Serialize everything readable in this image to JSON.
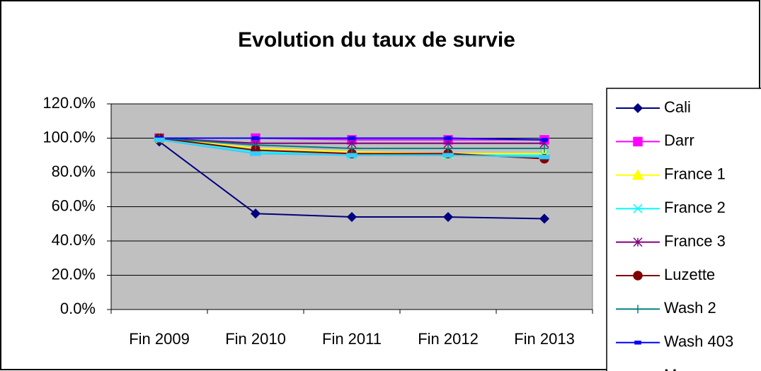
{
  "chart_data": {
    "type": "line",
    "title": "Evolution du taux de survie",
    "categories": [
      "Fin 2009",
      "Fin 2010",
      "Fin 2011",
      "Fin 2012",
      "Fin 2013"
    ],
    "series": [
      {
        "name": "Cali",
        "color": "#000080",
        "marker": "diamond",
        "values": [
          98,
          56,
          54,
          54,
          53
        ]
      },
      {
        "name": "Darr",
        "color": "#ff00ff",
        "marker": "square",
        "values": [
          100,
          100,
          99,
          99,
          99
        ]
      },
      {
        "name": "France 1",
        "color": "#ffff00",
        "marker": "triangle",
        "values": [
          100,
          94,
          92,
          91,
          91
        ]
      },
      {
        "name": "France 2",
        "color": "#00ffff",
        "marker": "x",
        "values": [
          100,
          92,
          90,
          90,
          90
        ]
      },
      {
        "name": "France 3",
        "color": "#800080",
        "marker": "star",
        "values": [
          100,
          97,
          97,
          97,
          97
        ]
      },
      {
        "name": "Luzette",
        "color": "#800000",
        "marker": "circle",
        "values": [
          100,
          93,
          91,
          91,
          88
        ]
      },
      {
        "name": "Wash 2",
        "color": "#008080",
        "marker": "plus",
        "values": [
          100,
          96,
          94,
          94,
          94
        ]
      },
      {
        "name": "Wash 403",
        "color": "#0000ff",
        "marker": "dash",
        "values": [
          100,
          100,
          100,
          100,
          99
        ]
      },
      {
        "name": "Moyenne",
        "color": "#33ccff",
        "marker": "bar",
        "values": [
          99,
          91,
          90,
          90,
          89
        ]
      }
    ],
    "ylim": [
      0,
      120
    ],
    "yticks": [
      {
        "value": 0,
        "label": "0.0%"
      },
      {
        "value": 20,
        "label": "20.0%"
      },
      {
        "value": 40,
        "label": "40.0%"
      },
      {
        "value": 60,
        "label": "60.0%"
      },
      {
        "value": 80,
        "label": "80.0%"
      },
      {
        "value": 100,
        "label": "100.0%"
      },
      {
        "value": 120,
        "label": "120.0%"
      }
    ],
    "grid": true,
    "legend": "right"
  }
}
